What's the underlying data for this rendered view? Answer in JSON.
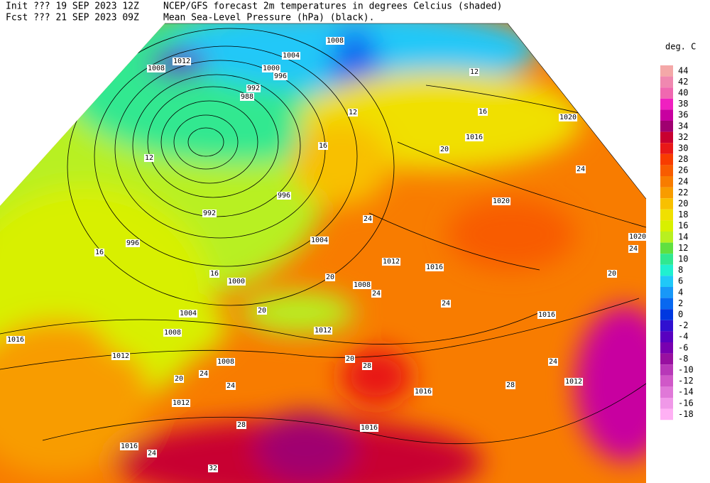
{
  "header": {
    "init": "Init  ??? 19 SEP 2023 12Z",
    "fcst": "Fcst ??? 21 SEP 2023 09Z",
    "title": "NCEP/GFS forecast 2m temperatures in degrees Celcius (shaded)",
    "subtitle": "Mean Sea-Level Pressure (hPa) (black)."
  },
  "colorbar": {
    "unit": "deg. C",
    "levels": [
      44,
      42,
      40,
      38,
      36,
      34,
      32,
      30,
      28,
      26,
      24,
      22,
      20,
      18,
      16,
      14,
      12,
      10,
      8,
      6,
      4,
      2,
      0,
      -2,
      -4,
      -6,
      -8,
      -10,
      -12,
      -14,
      -16,
      -18
    ],
    "colors": [
      "#f4a8a8",
      "#f088b0",
      "#f068b0",
      "#f020c0",
      "#c800a0",
      "#a00070",
      "#c80030",
      "#e81818",
      "#f83c00",
      "#f85c00",
      "#f87c00",
      "#f89c00",
      "#f8c000",
      "#f0e000",
      "#d8f000",
      "#b8f020",
      "#60e040",
      "#30e890",
      "#20f0d0",
      "#20c8f8",
      "#1898f8",
      "#0868f0",
      "#0038e0",
      "#3010d0",
      "#5800c0",
      "#7800b0",
      "#9810a0",
      "#b838b8",
      "#d058c8",
      "#e078d8",
      "#f098e8",
      "#ffb0f4"
    ]
  },
  "map": {
    "isobar_labels": [
      "1008",
      "1012",
      "1008",
      "1004",
      "1000",
      "996",
      "992",
      "988",
      "996",
      "992",
      "996",
      "1004",
      "1000",
      "1004",
      "1008",
      "1012",
      "1016",
      "1008",
      "1012",
      "1016",
      "1012",
      "1008",
      "1012",
      "1016",
      "1016",
      "1020",
      "1020",
      "1020",
      "1016",
      "1012",
      "1016",
      "1016"
    ],
    "temperature_labels": [
      "16",
      "12",
      "20",
      "24",
      "24",
      "24",
      "20",
      "16",
      "20",
      "20",
      "24",
      "24",
      "20",
      "28",
      "24",
      "28",
      "28",
      "32",
      "24",
      "16",
      "12",
      "20",
      "24",
      "24",
      "16",
      "12"
    ]
  }
}
